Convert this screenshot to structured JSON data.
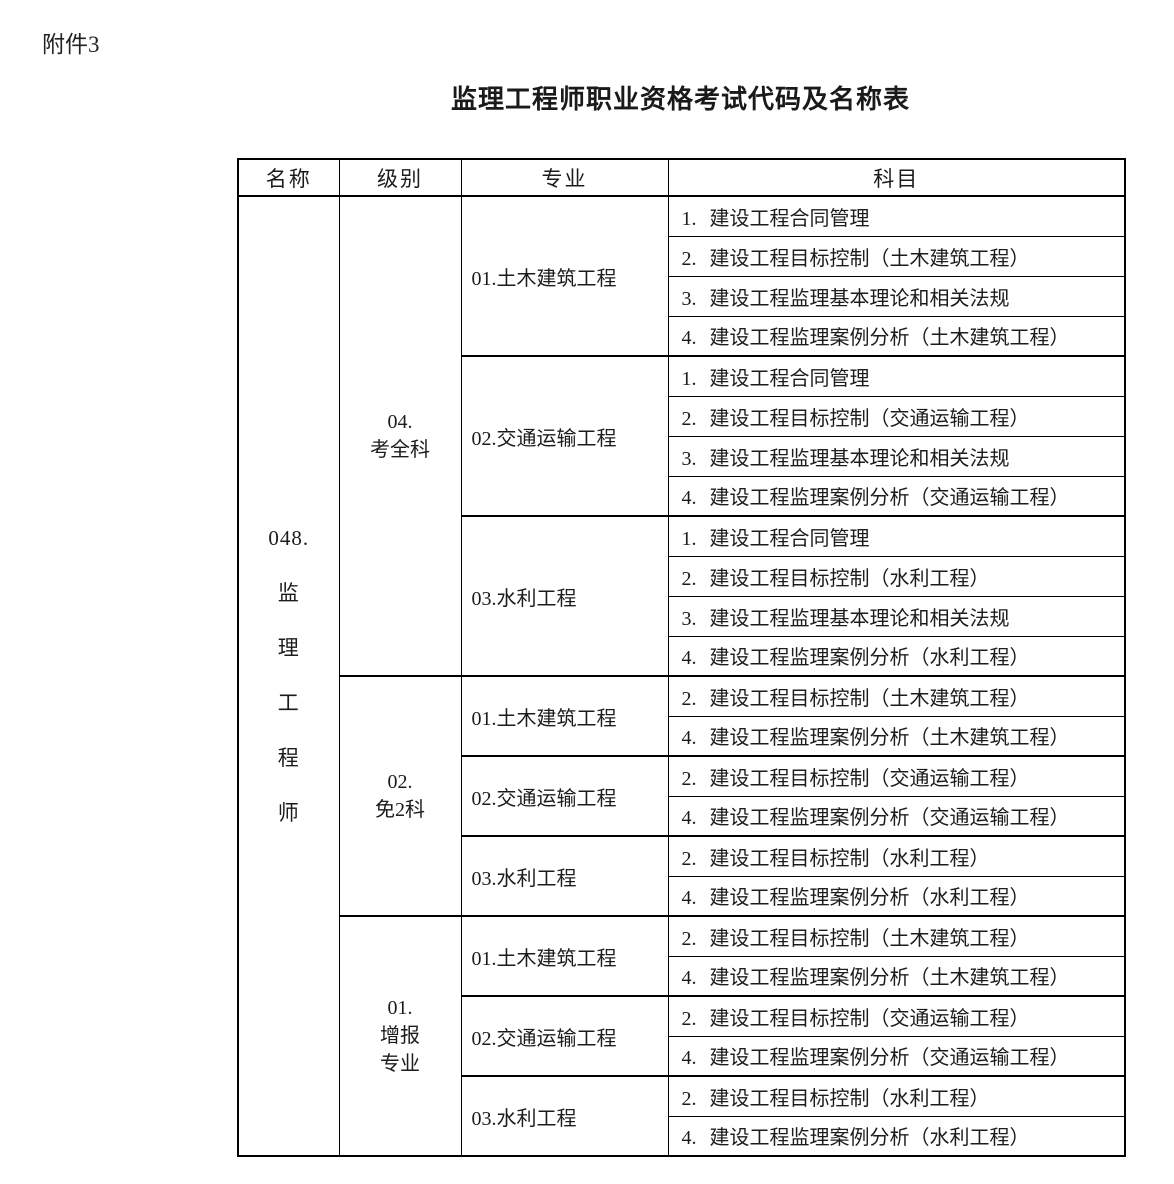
{
  "page": {
    "attachment": "附件3",
    "title": "监理工程师职业资格考试代码及名称表",
    "background": "#ffffff",
    "text_color": "#1c1c1c",
    "border_color": "#000000"
  },
  "table": {
    "headers": {
      "name": "名称",
      "level": "级别",
      "major": "专业",
      "subject": "科目"
    },
    "name": {
      "lines": [
        "048.",
        "监",
        "理",
        "工",
        "程",
        "师"
      ]
    },
    "levels": [
      {
        "label_lines": [
          "04.",
          "考全科"
        ],
        "majors": [
          {
            "label": "01.土木建筑工程",
            "subjects": [
              {
                "num": "1.",
                "text": "建设工程合同管理"
              },
              {
                "num": "2.",
                "text": "建设工程目标控制（土木建筑工程）"
              },
              {
                "num": "3.",
                "text": "建设工程监理基本理论和相关法规"
              },
              {
                "num": "4.",
                "text": "建设工程监理案例分析（土木建筑工程）"
              }
            ]
          },
          {
            "label": "02.交通运输工程",
            "subjects": [
              {
                "num": "1.",
                "text": "建设工程合同管理"
              },
              {
                "num": "2.",
                "text": "建设工程目标控制（交通运输工程）"
              },
              {
                "num": "3.",
                "text": "建设工程监理基本理论和相关法规"
              },
              {
                "num": "4.",
                "text": "建设工程监理案例分析（交通运输工程）"
              }
            ]
          },
          {
            "label": "03.水利工程",
            "subjects": [
              {
                "num": "1.",
                "text": "建设工程合同管理"
              },
              {
                "num": "2.",
                "text": "建设工程目标控制（水利工程）"
              },
              {
                "num": "3.",
                "text": "建设工程监理基本理论和相关法规"
              },
              {
                "num": "4.",
                "text": "建设工程监理案例分析（水利工程）"
              }
            ]
          }
        ]
      },
      {
        "label_lines": [
          "02.",
          "免2科"
        ],
        "majors": [
          {
            "label": "01.土木建筑工程",
            "subjects": [
              {
                "num": "2.",
                "text": "建设工程目标控制（土木建筑工程）"
              },
              {
                "num": "4.",
                "text": "建设工程监理案例分析（土木建筑工程）"
              }
            ]
          },
          {
            "label": "02.交通运输工程",
            "subjects": [
              {
                "num": "2.",
                "text": "建设工程目标控制（交通运输工程）"
              },
              {
                "num": "4.",
                "text": "建设工程监理案例分析（交通运输工程）"
              }
            ]
          },
          {
            "label": "03.水利工程",
            "subjects": [
              {
                "num": "2.",
                "text": "建设工程目标控制（水利工程）"
              },
              {
                "num": "4.",
                "text": "建设工程监理案例分析（水利工程）"
              }
            ]
          }
        ]
      },
      {
        "label_lines": [
          "01.",
          "增报",
          "专业"
        ],
        "majors": [
          {
            "label": "01.土木建筑工程",
            "subjects": [
              {
                "num": "2.",
                "text": "建设工程目标控制（土木建筑工程）"
              },
              {
                "num": "4.",
                "text": "建设工程监理案例分析（土木建筑工程）"
              }
            ]
          },
          {
            "label": "02.交通运输工程",
            "subjects": [
              {
                "num": "2.",
                "text": "建设工程目标控制（交通运输工程）"
              },
              {
                "num": "4.",
                "text": "建设工程监理案例分析（交通运输工程）"
              }
            ]
          },
          {
            "label": "03.水利工程",
            "subjects": [
              {
                "num": "2.",
                "text": "建设工程目标控制（水利工程）"
              },
              {
                "num": "4.",
                "text": "建设工程监理案例分析（水利工程）"
              }
            ]
          }
        ]
      }
    ]
  }
}
